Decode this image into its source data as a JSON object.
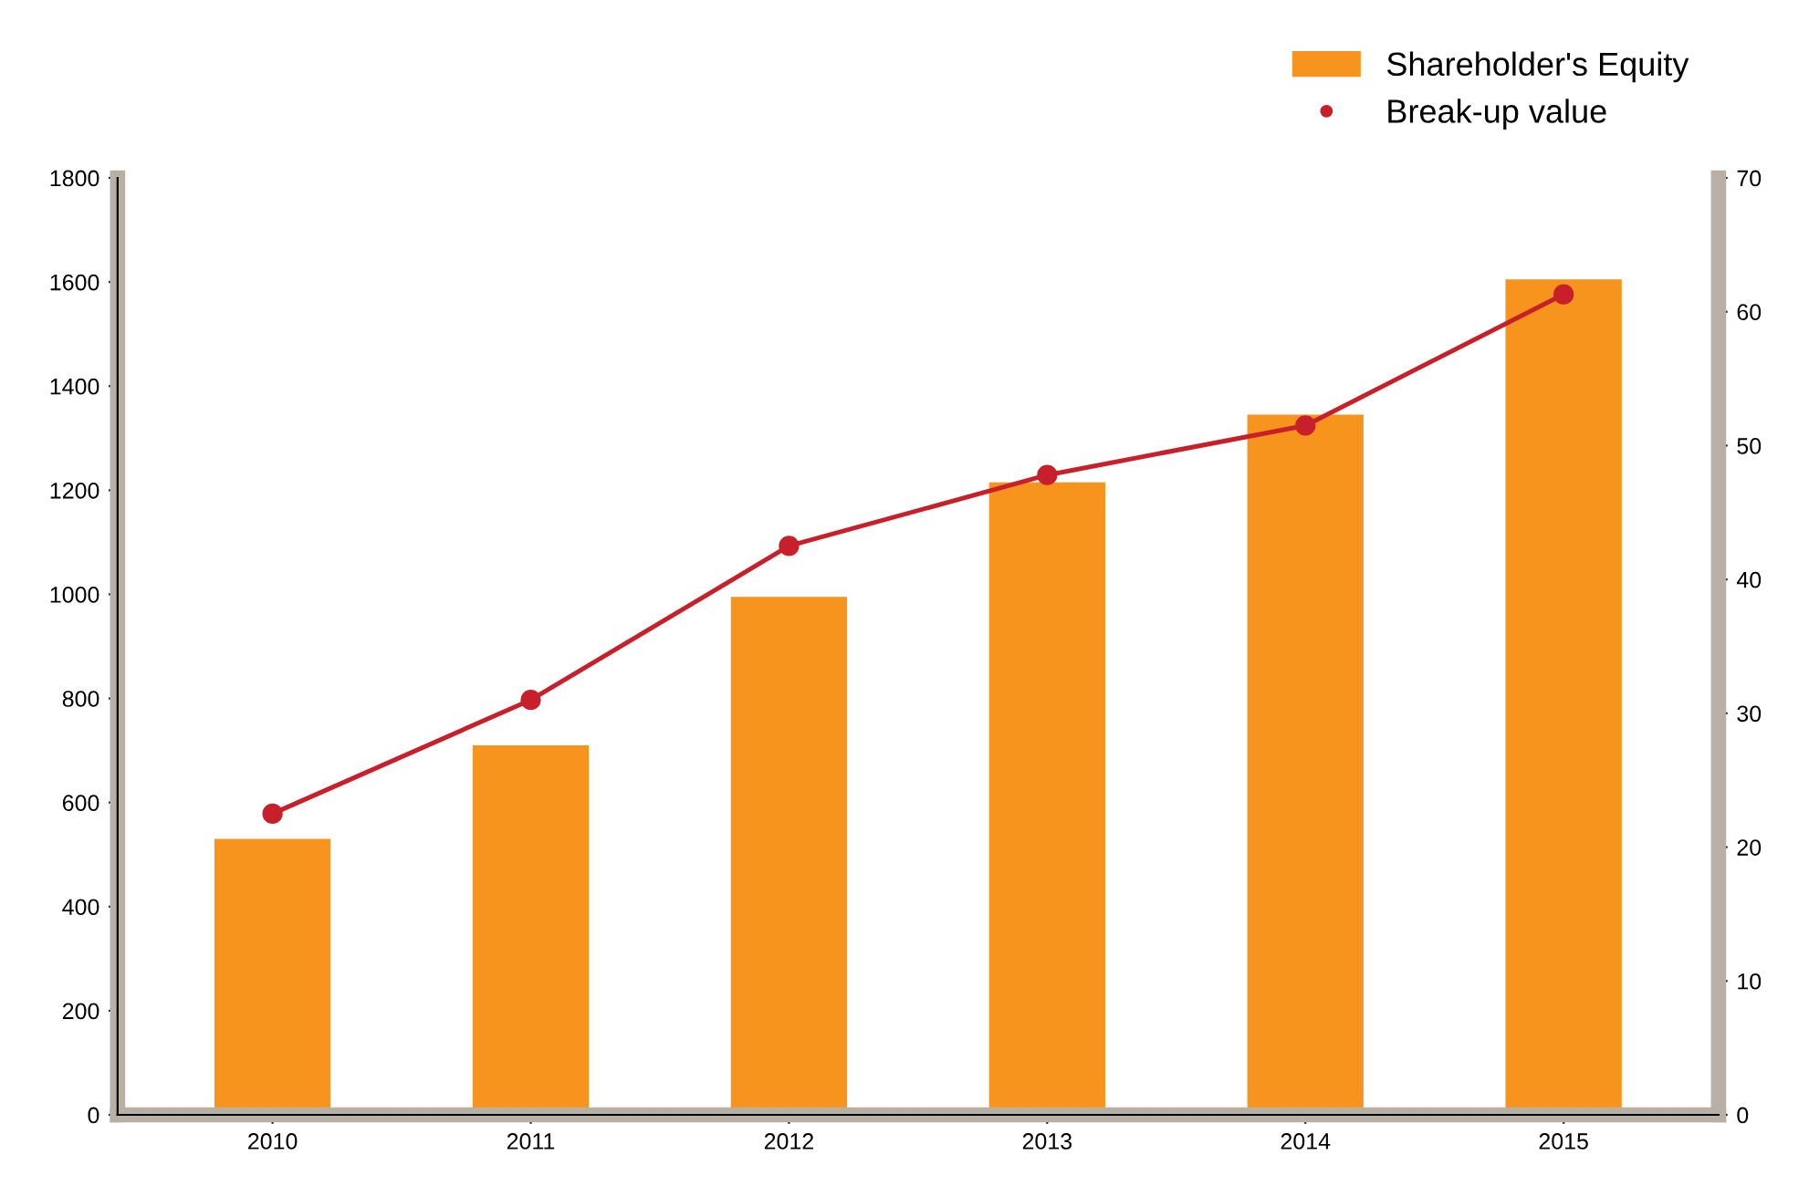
{
  "chart_data": {
    "type": "bar",
    "categories": [
      "2010",
      "2011",
      "2012",
      "2013",
      "2014",
      "2015"
    ],
    "series": [
      {
        "name": "Shareholder's Equity",
        "color": "#f7941d",
        "values": [
          530,
          710,
          995,
          1215,
          1345,
          1605
        ]
      },
      {
        "name": "Break-up value",
        "type": "line",
        "axis": "y2",
        "color": "#c8202a",
        "marker": "circle",
        "values": [
          22.5,
          31,
          42.5,
          47.8,
          51.5,
          61.3
        ]
      }
    ],
    "ylim": [
      0,
      1800
    ],
    "yticks": [
      0,
      200,
      400,
      600,
      800,
      1000,
      1200,
      1400,
      1600,
      1800
    ],
    "y2lim": [
      0,
      70
    ],
    "y2ticks": [
      0,
      10,
      20,
      30,
      40,
      50,
      60,
      70
    ],
    "grid": false,
    "legend": "top right"
  }
}
